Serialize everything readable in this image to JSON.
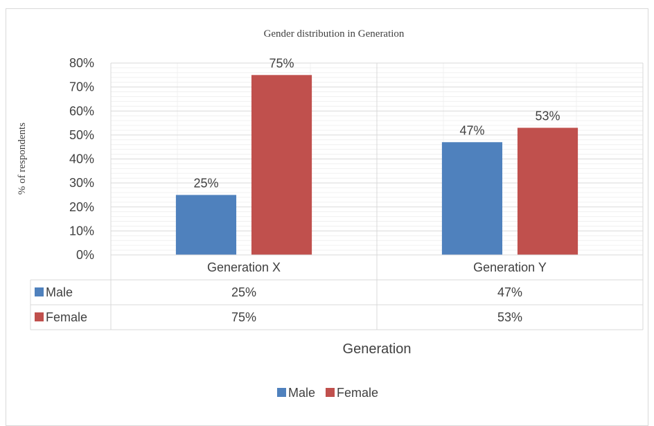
{
  "chart_data": {
    "type": "bar",
    "title": "Gender distribution  in Generation",
    "xlabel": "Generation",
    "ylabel": "% of respondents",
    "categories": [
      "Generation X",
      "Generation Y"
    ],
    "series": [
      {
        "name": "Male",
        "values": [
          25,
          47
        ],
        "labels": [
          "25%",
          "47%"
        ],
        "color": "#4f81bd"
      },
      {
        "name": "Female",
        "values": [
          75,
          53
        ],
        "labels": [
          "75%",
          "53%"
        ],
        "color": "#c0504d"
      }
    ],
    "ylim": [
      0,
      80
    ],
    "y_ticks": [
      "0%",
      "10%",
      "20%",
      "30%",
      "40%",
      "50%",
      "60%",
      "70%",
      "80%"
    ],
    "grid": true,
    "data_table": true,
    "legend_position": "bottom"
  }
}
